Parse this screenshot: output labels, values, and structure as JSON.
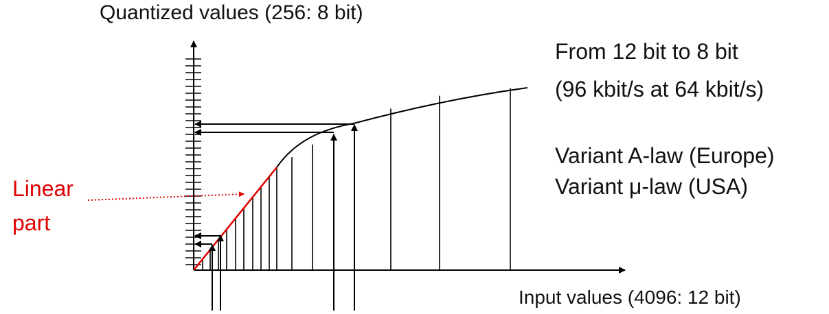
{
  "y_axis_label": "Quantized values (256: 8 bit)",
  "x_axis_label": "Input values (4096: 12 bit)",
  "notes": {
    "line1": "From 12 bit to 8 bit",
    "line2": "(96 kbit/s at 64 kbit/s)",
    "variant_a": "Variant A-law (Europe)",
    "variant_mu": "Variant μ-law (USA)"
  },
  "linear_label": {
    "line1": "Linear",
    "line2": "part"
  },
  "colors": {
    "ink": "#000000",
    "linear": "#e00000"
  }
}
